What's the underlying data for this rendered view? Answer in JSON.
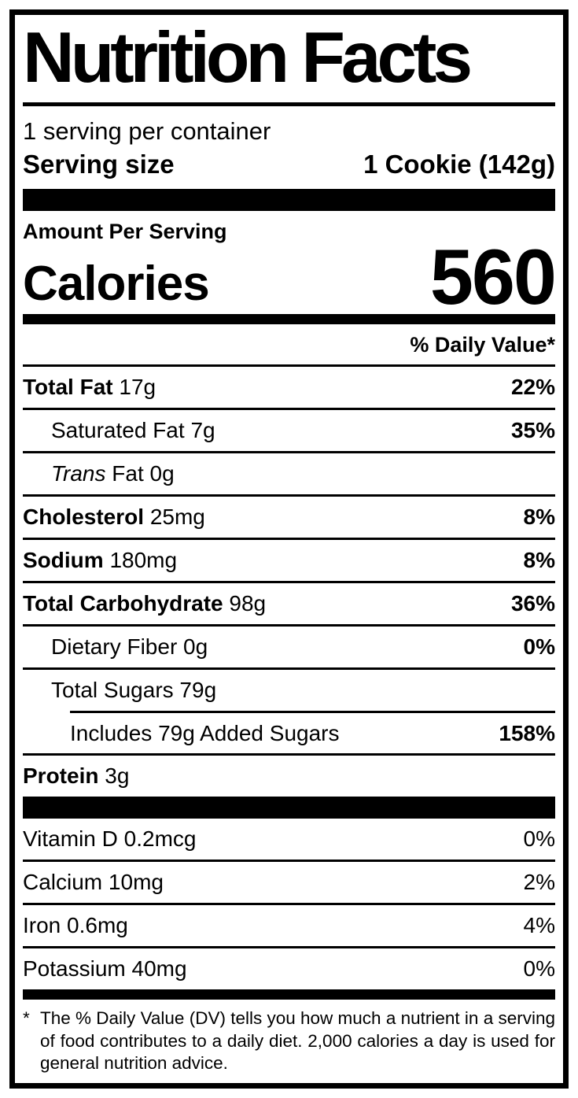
{
  "label_box": {
    "title": "Nutrition Facts",
    "servings_per_container": "1 serving per container",
    "serving_size_label": "Serving size",
    "serving_size_value": "1 Cookie (142g)",
    "amount_per_serving": "Amount Per Serving",
    "calories_label": "Calories",
    "calories_value": "560",
    "daily_value_header": "% Daily Value*",
    "nutrients": [
      {
        "name": "Total Fat",
        "amount": "17g",
        "dv": "22%"
      },
      {
        "name": "Saturated Fat",
        "amount": "7g",
        "dv": "35%"
      },
      {
        "name_italic": "Trans",
        "name": "Fat",
        "amount": "0g",
        "dv": ""
      },
      {
        "name": "Cholesterol",
        "amount": "25mg",
        "dv": "8%"
      },
      {
        "name": "Sodium",
        "amount": "180mg",
        "dv": "8%"
      },
      {
        "name": "Total Carbohydrate",
        "amount": "98g",
        "dv": "36%"
      },
      {
        "name": "Dietary Fiber",
        "amount": "0g",
        "dv": "0%"
      },
      {
        "name": "Total Sugars",
        "amount": "79g",
        "dv": ""
      },
      {
        "name": "Includes 79g Added Sugars",
        "amount": "",
        "dv": "158%"
      },
      {
        "name": "Protein",
        "amount": "3g",
        "dv": ""
      }
    ],
    "vitamins": [
      {
        "name": "Vitamin D",
        "amount": "0.2mcg",
        "dv": "0%"
      },
      {
        "name": "Calcium",
        "amount": "10mg",
        "dv": "2%"
      },
      {
        "name": "Iron",
        "amount": "0.6mg",
        "dv": "4%"
      },
      {
        "name": "Potassium",
        "amount": "40mg",
        "dv": "0%"
      }
    ],
    "footnote_marker": "*",
    "footnote_text": "The % Daily Value (DV) tells you how much a nutrient in a serving of food contributes to a daily diet. 2,000 calories a day is used for general nutrition advice.",
    "colors": {
      "ink": "#000000",
      "paper": "#ffffff"
    }
  }
}
